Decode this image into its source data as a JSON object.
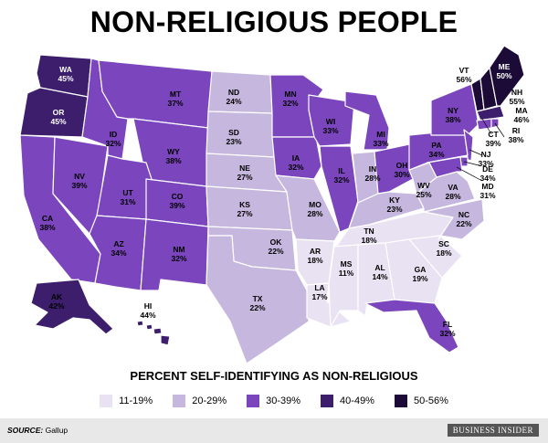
{
  "title": "NON-RELIGIOUS PEOPLE",
  "subtitle": "PERCENT SELF-IDENTIFYING AS NON-RELIGIOUS",
  "legend": [
    {
      "label": "11-19%",
      "color": "#e8e2f2"
    },
    {
      "label": "20-29%",
      "color": "#c6b7de"
    },
    {
      "label": "30-39%",
      "color": "#7b45bd"
    },
    {
      "label": "40-49%",
      "color": "#3c1e6c"
    },
    {
      "label": "50-56%",
      "color": "#1c0b36"
    }
  ],
  "source": {
    "label": "SOURCE:",
    "value": "Gallup"
  },
  "brand": "BUSINESS INSIDER",
  "states": [
    {
      "abbr": "WA",
      "value": 45,
      "pct": "45%"
    },
    {
      "abbr": "OR",
      "value": 45,
      "pct": "45%"
    },
    {
      "abbr": "CA",
      "value": 38,
      "pct": "38%"
    },
    {
      "abbr": "NV",
      "value": 39,
      "pct": "39%"
    },
    {
      "abbr": "ID",
      "value": 32,
      "pct": "32%"
    },
    {
      "abbr": "MT",
      "value": 37,
      "pct": "37%"
    },
    {
      "abbr": "WY",
      "value": 38,
      "pct": "38%"
    },
    {
      "abbr": "UT",
      "value": 31,
      "pct": "31%"
    },
    {
      "abbr": "AZ",
      "value": 34,
      "pct": "34%"
    },
    {
      "abbr": "CO",
      "value": 39,
      "pct": "39%"
    },
    {
      "abbr": "NM",
      "value": 32,
      "pct": "32%"
    },
    {
      "abbr": "ND",
      "value": 24,
      "pct": "24%"
    },
    {
      "abbr": "SD",
      "value": 23,
      "pct": "23%"
    },
    {
      "abbr": "NE",
      "value": 27,
      "pct": "27%"
    },
    {
      "abbr": "KS",
      "value": 27,
      "pct": "27%"
    },
    {
      "abbr": "OK",
      "value": 22,
      "pct": "22%"
    },
    {
      "abbr": "TX",
      "value": 22,
      "pct": "22%"
    },
    {
      "abbr": "MN",
      "value": 32,
      "pct": "32%"
    },
    {
      "abbr": "IA",
      "value": 32,
      "pct": "32%"
    },
    {
      "abbr": "MO",
      "value": 28,
      "pct": "28%"
    },
    {
      "abbr": "AR",
      "value": 18,
      "pct": "18%"
    },
    {
      "abbr": "LA",
      "value": 17,
      "pct": "17%"
    },
    {
      "abbr": "WI",
      "value": 33,
      "pct": "33%"
    },
    {
      "abbr": "IL",
      "value": 32,
      "pct": "32%"
    },
    {
      "abbr": "MI",
      "value": 33,
      "pct": "33%"
    },
    {
      "abbr": "IN",
      "value": 28,
      "pct": "28%"
    },
    {
      "abbr": "OH",
      "value": 30,
      "pct": "30%"
    },
    {
      "abbr": "KY",
      "value": 23,
      "pct": "23%"
    },
    {
      "abbr": "TN",
      "value": 18,
      "pct": "18%"
    },
    {
      "abbr": "MS",
      "value": 11,
      "pct": "11%"
    },
    {
      "abbr": "AL",
      "value": 14,
      "pct": "14%"
    },
    {
      "abbr": "GA",
      "value": 19,
      "pct": "19%"
    },
    {
      "abbr": "FL",
      "value": 32,
      "pct": "32%"
    },
    {
      "abbr": "SC",
      "value": 18,
      "pct": "18%"
    },
    {
      "abbr": "NC",
      "value": 22,
      "pct": "22%"
    },
    {
      "abbr": "VA",
      "value": 28,
      "pct": "28%"
    },
    {
      "abbr": "WV",
      "value": 25,
      "pct": "25%"
    },
    {
      "abbr": "PA",
      "value": 34,
      "pct": "34%"
    },
    {
      "abbr": "NY",
      "value": 38,
      "pct": "38%"
    },
    {
      "abbr": "VT",
      "value": 56,
      "pct": "56%"
    },
    {
      "abbr": "ME",
      "value": 50,
      "pct": "50%"
    },
    {
      "abbr": "NH",
      "value": 55,
      "pct": "55%"
    },
    {
      "abbr": "MA",
      "value": 46,
      "pct": "46%"
    },
    {
      "abbr": "RI",
      "value": 38,
      "pct": "38%"
    },
    {
      "abbr": "CT",
      "value": 39,
      "pct": "39%"
    },
    {
      "abbr": "NJ",
      "value": 33,
      "pct": "33%"
    },
    {
      "abbr": "DE",
      "value": 34,
      "pct": "34%"
    },
    {
      "abbr": "MD",
      "value": 31,
      "pct": "31%"
    },
    {
      "abbr": "AK",
      "value": 42,
      "pct": "42%"
    },
    {
      "abbr": "HI",
      "value": 44,
      "pct": "44%"
    }
  ]
}
